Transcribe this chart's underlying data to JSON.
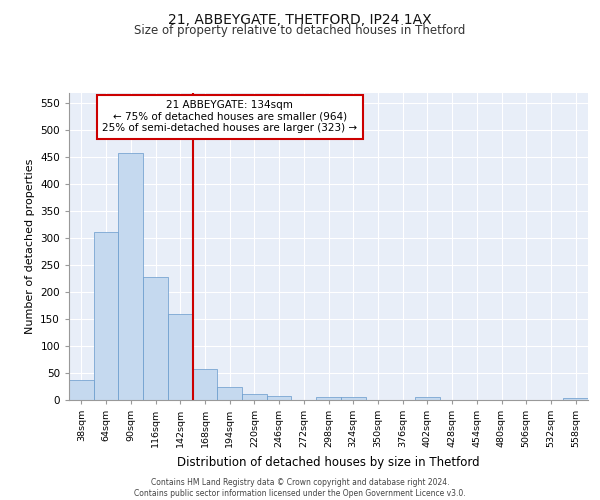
{
  "title1": "21, ABBEYGATE, THETFORD, IP24 1AX",
  "title2": "Size of property relative to detached houses in Thetford",
  "xlabel": "Distribution of detached houses by size in Thetford",
  "ylabel": "Number of detached properties",
  "bin_labels": [
    "38sqm",
    "64sqm",
    "90sqm",
    "116sqm",
    "142sqm",
    "168sqm",
    "194sqm",
    "220sqm",
    "246sqm",
    "272sqm",
    "298sqm",
    "324sqm",
    "350sqm",
    "376sqm",
    "402sqm",
    "428sqm",
    "454sqm",
    "480sqm",
    "506sqm",
    "532sqm",
    "558sqm"
  ],
  "bar_values": [
    38,
    311,
    457,
    228,
    160,
    58,
    25,
    11,
    8,
    0,
    5,
    6,
    0,
    0,
    5,
    0,
    0,
    0,
    0,
    0,
    4
  ],
  "bar_color": "#c5d9ef",
  "bar_edge_color": "#6699cc",
  "background_color": "#e8eef8",
  "grid_color": "#ffffff",
  "vline_x_index": 4,
  "vline_color": "#cc0000",
  "annotation_text": "21 ABBEYGATE: 134sqm\n← 75% of detached houses are smaller (964)\n25% of semi-detached houses are larger (323) →",
  "annotation_box_color": "#ffffff",
  "annotation_box_edge": "#cc0000",
  "footer_text": "Contains HM Land Registry data © Crown copyright and database right 2024.\nContains public sector information licensed under the Open Government Licence v3.0.",
  "ylim": [
    0,
    570
  ],
  "yticks": [
    0,
    50,
    100,
    150,
    200,
    250,
    300,
    350,
    400,
    450,
    500,
    550
  ]
}
